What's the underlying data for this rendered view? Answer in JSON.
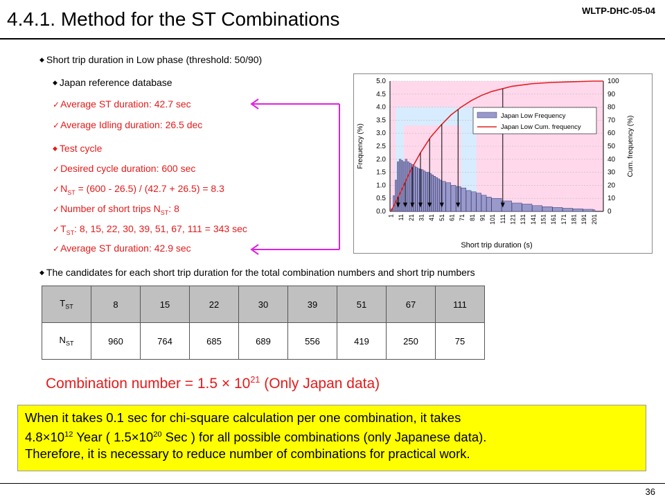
{
  "header": {
    "title": "4.4.1. Method for the ST Combinations",
    "doc_id": "WLTP-DHC-05-04",
    "page_number": "36"
  },
  "intro": "Short trip duration in Low phase (threshold: 50/90)",
  "japan": {
    "heading": "Japan reference database",
    "items": [
      "Average ST duration: 42.7 sec",
      "Average Idling duration: 26.5 dec"
    ]
  },
  "test_cycle": {
    "heading": "Test cycle",
    "desired": "Desired cycle duration: 600 sec",
    "nst_prefix": "N",
    "nst_sub": "ST",
    "nst_formula": " = (600 - 26.5) / (42.7 + 26.5) = 8.3",
    "num_prefix": "Number of short trips N",
    "num_sub": "ST",
    "num_suffix": ": 8",
    "tst_prefix": "T",
    "tst_sub": "ST",
    "tst_values": ": 8, 15, 22, 30, 39, 51, 67, 111 = 343 sec",
    "avg": "Average ST duration: 42.9 sec"
  },
  "candidates_text": "The candidates for each short trip duration for the total combination numbers and short trip numbers",
  "table": {
    "row1_label": "T",
    "row1_sub": "ST",
    "tst": [
      "8",
      "15",
      "22",
      "30",
      "39",
      "51",
      "67",
      "111"
    ],
    "row2_label": "N",
    "row2_sub": "ST",
    "nst": [
      "960",
      "764",
      "685",
      "689",
      "556",
      "419",
      "250",
      "75"
    ]
  },
  "combination": {
    "prefix": "Combination number = 1.5 × 10",
    "exp": "21",
    "suffix": " (Only Japan data)"
  },
  "note": {
    "l1": "When it takes 0.1 sec for chi-square calculation per one combination, it takes",
    "l2a": "4.8×10",
    "l2exp1": "12",
    "l2b": " Year ( 1.5×10",
    "l2exp2": "20",
    "l2c": " Sec ) for all possible combinations (only Japanese data).",
    "l3": "Therefore, it is necessary to reduce number of combinations for practical work."
  },
  "colors": {
    "red_text": "#e41a1a",
    "magenta_arrow": "#e020e0",
    "note_bg": "#ffff00",
    "table_header_bg": "#c0c0c0",
    "bar_fill": "#9999cc",
    "cum_line": "#e02020",
    "pink_band": "#ffd8ec",
    "blue_band": "#d8ecff"
  },
  "chart_data": {
    "type": "bar",
    "xlabel": "Short trip duration (s)",
    "ylabel": "Frequency (%)",
    "y2label": "Cum. frequency (%)",
    "ylim": [
      0,
      5
    ],
    "y2lim": [
      0,
      100
    ],
    "yticks": [
      "0.0",
      "0.5",
      "1.0",
      "1.5",
      "2.0",
      "2.5",
      "3.0",
      "3.5",
      "4.0",
      "4.5",
      "5.0"
    ],
    "y2ticks": [
      "0",
      "10",
      "20",
      "30",
      "40",
      "50",
      "60",
      "70",
      "80",
      "90",
      "100"
    ],
    "xticks": [
      "1",
      "11",
      "21",
      "31",
      "41",
      "51",
      "61",
      "71",
      "81",
      "91",
      "101",
      "111",
      "121",
      "131",
      "141",
      "151",
      "161",
      "171",
      "181",
      "191",
      "201"
    ],
    "legend_position": "top-right",
    "series": [
      {
        "name": "Japan Low Frequency",
        "kind": "bar",
        "x": [
          1,
          3,
          5,
          7,
          9,
          11,
          13,
          15,
          17,
          19,
          21,
          23,
          25,
          27,
          29,
          31,
          33,
          35,
          37,
          39,
          41,
          43,
          45,
          47,
          49,
          51,
          55,
          60,
          65,
          70,
          75,
          80,
          85,
          90,
          95,
          100,
          110,
          120,
          130,
          140,
          150,
          160,
          170,
          180,
          190,
          200
        ],
        "values": [
          0.1,
          0.6,
          1.2,
          1.9,
          2.0,
          1.95,
          1.9,
          2.0,
          1.9,
          1.85,
          1.8,
          1.75,
          1.7,
          1.65,
          1.62,
          1.6,
          1.55,
          1.5,
          1.5,
          1.45,
          1.4,
          1.35,
          1.3,
          1.25,
          1.2,
          1.15,
          1.1,
          1.0,
          0.95,
          0.9,
          0.8,
          0.75,
          0.7,
          0.62,
          0.55,
          0.5,
          0.4,
          0.32,
          0.28,
          0.22,
          0.18,
          0.15,
          0.12,
          0.1,
          0.08,
          0.06
        ]
      },
      {
        "name": "Japan Low Cum. frequency",
        "kind": "line",
        "axis": "right",
        "x": [
          1,
          10,
          20,
          30,
          40,
          50,
          60,
          70,
          80,
          90,
          100,
          110,
          120,
          140,
          160,
          180,
          200,
          210
        ],
        "values": [
          0,
          14,
          31,
          45,
          57,
          66,
          74,
          80,
          85,
          89,
          92,
          94,
          96,
          98,
          99,
          99.5,
          100,
          100
        ]
      }
    ],
    "markers_x": [
      8,
      15,
      22,
      30,
      39,
      51,
      67,
      111
    ]
  }
}
